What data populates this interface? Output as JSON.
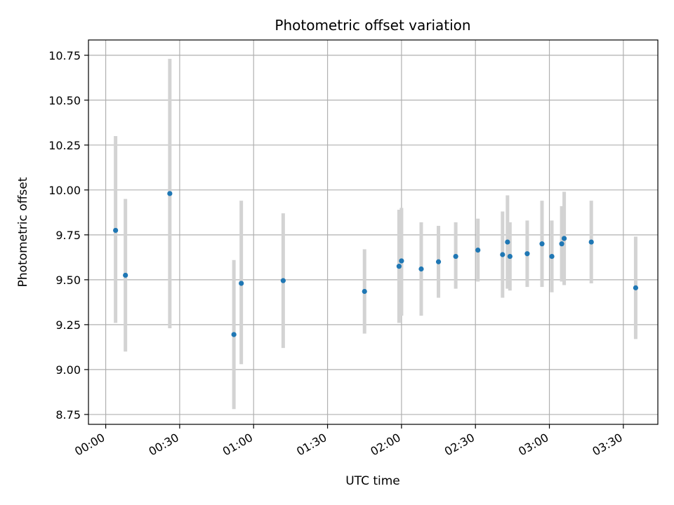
{
  "chart_data": {
    "type": "scatter",
    "title": "Photometric offset variation",
    "xlabel": "UTC time",
    "ylabel": "Photometric offset",
    "x_ticks": [
      "00:00",
      "00:30",
      "01:00",
      "01:30",
      "02:00",
      "02:30",
      "03:00",
      "03:30"
    ],
    "y_ticks": [
      "8.75",
      "9.00",
      "9.25",
      "9.50",
      "9.75",
      "10.00",
      "10.25",
      "10.50",
      "10.75"
    ],
    "xlim": [
      "23:53",
      "03:44"
    ],
    "ylim": [
      8.695,
      10.835
    ],
    "grid": true,
    "colors": {
      "points": "#1f77b4",
      "errorbars": "#d3d3d3",
      "grid": "#b0b0b0"
    },
    "points": [
      {
        "x": "00:04",
        "y": 9.775,
        "ylow": 9.26,
        "yhigh": 10.3
      },
      {
        "x": "00:08",
        "y": 9.525,
        "ylow": 9.1,
        "yhigh": 9.95
      },
      {
        "x": "00:26",
        "y": 9.98,
        "ylow": 9.23,
        "yhigh": 10.73
      },
      {
        "x": "00:52",
        "y": 9.195,
        "ylow": 8.78,
        "yhigh": 9.61
      },
      {
        "x": "00:55",
        "y": 9.48,
        "ylow": 9.03,
        "yhigh": 9.94
      },
      {
        "x": "01:12",
        "y": 9.495,
        "ylow": 9.12,
        "yhigh": 9.87
      },
      {
        "x": "01:45",
        "y": 9.435,
        "ylow": 9.2,
        "yhigh": 9.67
      },
      {
        "x": "01:59",
        "y": 9.575,
        "ylow": 9.26,
        "yhigh": 9.89
      },
      {
        "x": "02:00",
        "y": 9.605,
        "ylow": 9.3,
        "yhigh": 9.9
      },
      {
        "x": "02:08",
        "y": 9.56,
        "ylow": 9.3,
        "yhigh": 9.82
      },
      {
        "x": "02:15",
        "y": 9.6,
        "ylow": 9.4,
        "yhigh": 9.8
      },
      {
        "x": "02:22",
        "y": 9.63,
        "ylow": 9.45,
        "yhigh": 9.82
      },
      {
        "x": "02:31",
        "y": 9.665,
        "ylow": 9.49,
        "yhigh": 9.84
      },
      {
        "x": "02:41",
        "y": 9.64,
        "ylow": 9.4,
        "yhigh": 9.88
      },
      {
        "x": "02:43",
        "y": 9.71,
        "ylow": 9.45,
        "yhigh": 9.97
      },
      {
        "x": "02:44",
        "y": 9.63,
        "ylow": 9.44,
        "yhigh": 9.82
      },
      {
        "x": "02:51",
        "y": 9.645,
        "ylow": 9.46,
        "yhigh": 9.83
      },
      {
        "x": "02:57",
        "y": 9.7,
        "ylow": 9.46,
        "yhigh": 9.94
      },
      {
        "x": "03:01",
        "y": 9.63,
        "ylow": 9.43,
        "yhigh": 9.83
      },
      {
        "x": "03:05",
        "y": 9.7,
        "ylow": 9.49,
        "yhigh": 9.91
      },
      {
        "x": "03:06",
        "y": 9.73,
        "ylow": 9.47,
        "yhigh": 9.99
      },
      {
        "x": "03:17",
        "y": 9.71,
        "ylow": 9.48,
        "yhigh": 9.94
      },
      {
        "x": "03:35",
        "y": 9.455,
        "ylow": 9.17,
        "yhigh": 9.74
      }
    ]
  }
}
